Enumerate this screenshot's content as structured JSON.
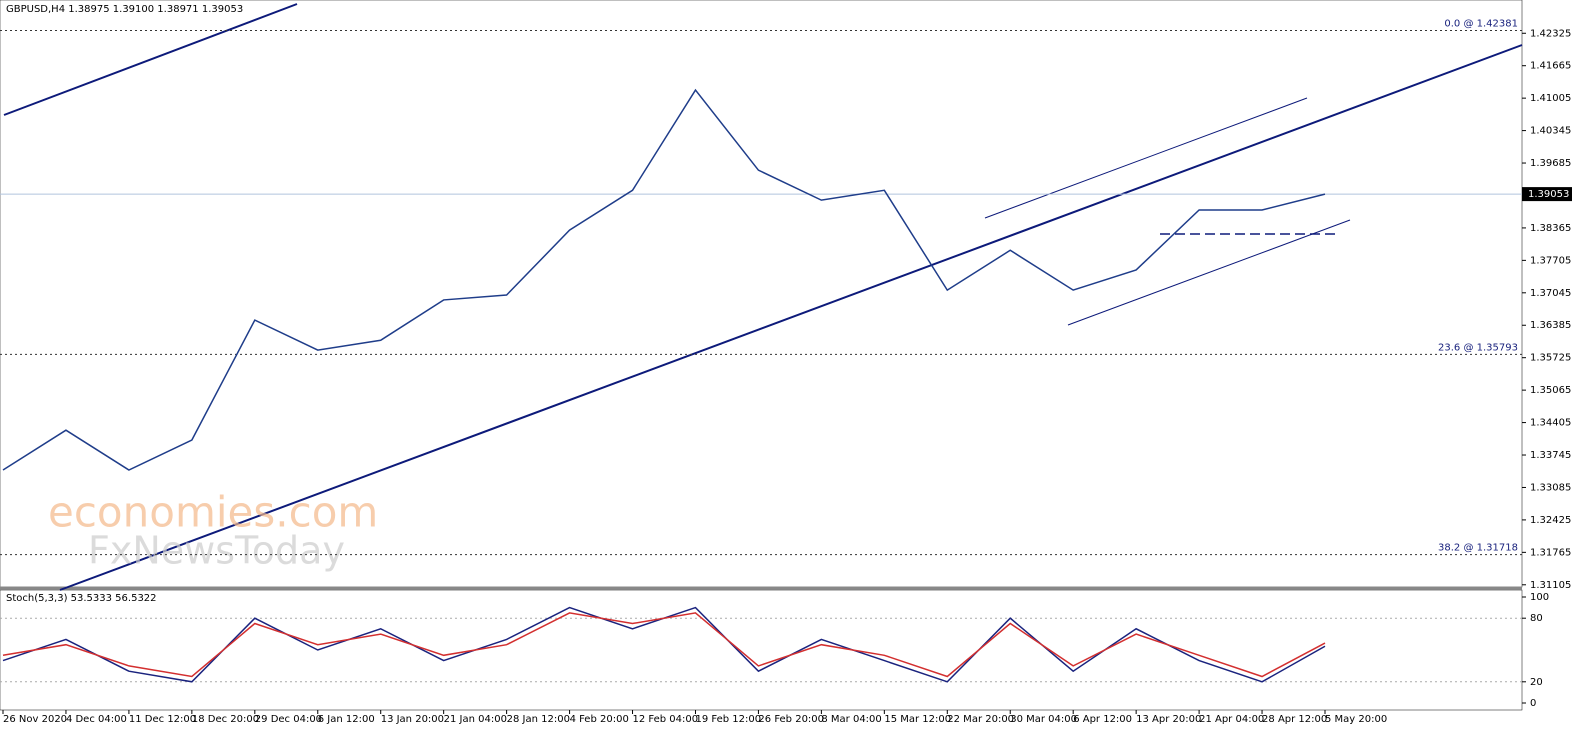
{
  "chart_data": [
    {
      "type": "line",
      "title": "GBPUSD,H4 1.38975 1.39100 1.38971 1.39053",
      "categories": [
        "26 Nov 2020",
        "4 Dec 04:00",
        "11 Dec 12:00",
        "18 Dec 20:00",
        "29 Dec 04:00",
        "6 Jan 12:00",
        "13 Jan 20:00",
        "21 Jan 04:00",
        "28 Jan 12:00",
        "4 Feb 20:00",
        "12 Feb 04:00",
        "19 Feb 12:00",
        "26 Feb 20:00",
        "8 Mar 04:00",
        "15 Mar 12:00",
        "22 Mar 20:00",
        "30 Mar 04:00",
        "6 Apr 12:00",
        "13 Apr 20:00",
        "21 Apr 04:00",
        "28 Apr 12:00",
        "5 May 20:00"
      ],
      "series": [
        {
          "color": "#1f3d8a",
          "values": [
            1.3344,
            1.3425,
            1.3344,
            1.3405,
            1.3649,
            1.3588,
            1.3608,
            1.369,
            1.37,
            1.3832,
            1.3913,
            1.4117,
            1.3954,
            1.3893,
            1.3913,
            1.371,
            1.3791,
            1.371,
            1.3751,
            1.3873,
            1.3873,
            1.39053
          ]
        }
      ],
      "ylim": [
        1.3106,
        1.429
      ],
      "yticks": [
        1.42325,
        1.41665,
        1.41005,
        1.40345,
        1.39685,
        1.38365,
        1.37705,
        1.37045,
        1.36385,
        1.35725,
        1.35065,
        1.34405,
        1.33745,
        1.33085,
        1.32425,
        1.31765,
        1.31105
      ],
      "current_price": 1.39053,
      "levels": [
        {
          "value": 1.42381,
          "label": "0.0 @ 1.42381"
        },
        {
          "value": 1.35793,
          "label": "23.6 @ 1.35793"
        },
        {
          "value": 1.31718,
          "label": "38.2 @ 1.31718"
        }
      ],
      "watermark": [
        "economies.com",
        "FxNewsToday"
      ]
    },
    {
      "type": "line",
      "title": "Stoch(5,3,3) 53.5333 56.5322",
      "series": [
        {
          "color": "#1a237e",
          "values": [
            40,
            60,
            30,
            20,
            80,
            50,
            70,
            40,
            60,
            90,
            70,
            90,
            30,
            60,
            40,
            20,
            80,
            30,
            70,
            40,
            20,
            53.5333
          ]
        },
        {
          "color": "#d32f2f",
          "values": [
            45,
            55,
            35,
            25,
            75,
            55,
            65,
            45,
            55,
            85,
            75,
            85,
            35,
            55,
            45,
            25,
            75,
            35,
            65,
            45,
            25,
            56.5322
          ]
        }
      ],
      "ylim": [
        0,
        100
      ],
      "yticks": [
        0,
        20,
        80,
        100
      ]
    }
  ]
}
